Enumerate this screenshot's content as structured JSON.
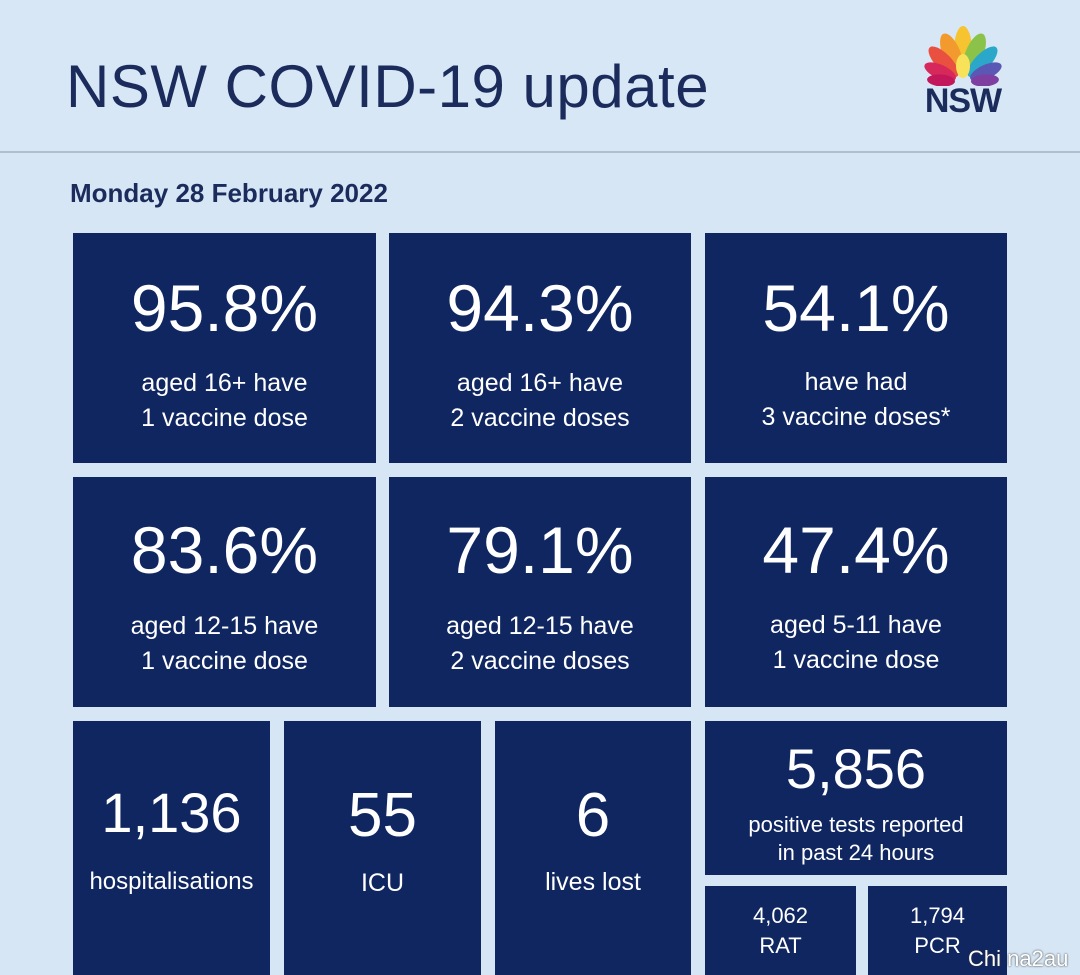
{
  "header": {
    "title": "NSW COVID-19 update",
    "logo_text": "NSW"
  },
  "date": "Monday 28 February 2022",
  "vaccination": [
    {
      "value": "95.8%",
      "line1": "aged 16+ have",
      "line2": "1 vaccine dose"
    },
    {
      "value": "94.3%",
      "line1": "aged 16+ have",
      "line2": "2 vaccine doses"
    },
    {
      "value": "54.1%",
      "line1": "have had",
      "line2": "3 vaccine doses*"
    },
    {
      "value": "83.6%",
      "line1": "aged 12-15 have",
      "line2": "1 vaccine dose"
    },
    {
      "value": "79.1%",
      "line1": "aged 12-15 have",
      "line2": "2 vaccine doses"
    },
    {
      "value": "47.4%",
      "line1": "aged 5-11 have",
      "line2": "1 vaccine dose"
    }
  ],
  "stats": [
    {
      "value": "1,136",
      "label": "hospitalisations"
    },
    {
      "value": "55",
      "label": "ICU"
    },
    {
      "value": "6",
      "label": "lives lost"
    }
  ],
  "positive_tests": {
    "value": "5,856",
    "line1": "positive tests reported",
    "line2": "in past 24 hours"
  },
  "test_breakdown": [
    {
      "value": "4,062",
      "label": "RAT"
    },
    {
      "value": "1,794",
      "label": "PCR"
    }
  ],
  "watermark": "Chi na2au",
  "colors": {
    "background": "#d6e6f4",
    "tile": "#0f2661",
    "title_text": "#1a2b5c"
  }
}
